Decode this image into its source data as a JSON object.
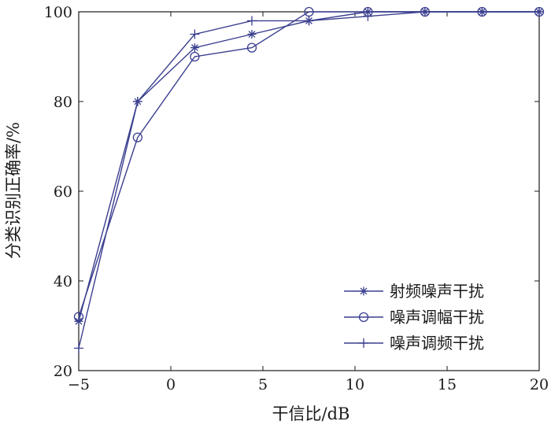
{
  "chart_data": {
    "type": "line",
    "title": "",
    "xlabel": "干信比/dB",
    "ylabel": "分类识别正确率/%",
    "xlim": [
      -5,
      20
    ],
    "ylim": [
      20,
      100
    ],
    "xticks": [
      -5,
      0,
      5,
      10,
      15,
      20
    ],
    "yticks": [
      20,
      40,
      60,
      80,
      100
    ],
    "grid": false,
    "legend_position": "bottom-right",
    "line_color": "#3a3f8f",
    "series": [
      {
        "name": "射频噪声干扰",
        "marker": "asterisk",
        "x": [
          -5,
          -1.8,
          1.3,
          4.4,
          7.5,
          10.7,
          13.8,
          16.9,
          20
        ],
        "y": [
          31,
          80,
          92,
          95,
          98,
          100,
          100,
          100,
          100
        ]
      },
      {
        "name": "噪声调幅干扰",
        "marker": "circle",
        "x": [
          -5,
          -1.8,
          1.3,
          4.4,
          7.5,
          10.7,
          13.8,
          16.9,
          20
        ],
        "y": [
          32,
          72,
          90,
          92,
          100,
          100,
          100,
          100,
          100
        ]
      },
      {
        "name": "噪声调频干扰",
        "marker": "plus",
        "x": [
          -5,
          -1.8,
          1.3,
          4.4,
          7.5,
          10.7,
          13.8,
          16.9,
          20
        ],
        "y": [
          25,
          80,
          95,
          98,
          98,
          99,
          100,
          100,
          100
        ]
      }
    ]
  }
}
